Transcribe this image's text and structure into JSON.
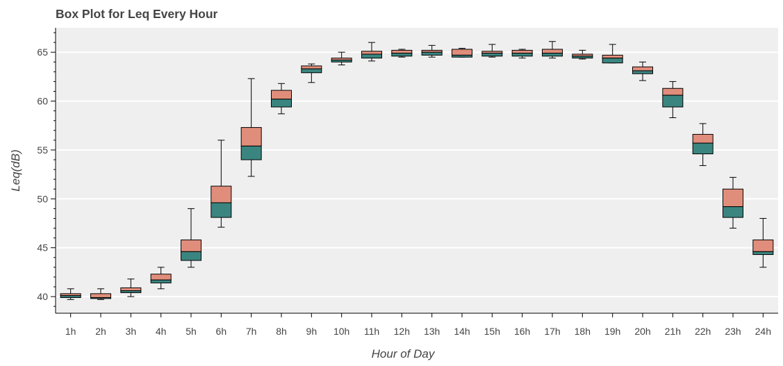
{
  "chart_data": {
    "type": "box",
    "title": "Box Plot for Leq Every Hour",
    "xlabel": "Hour of Day",
    "ylabel": "Leq(dB)",
    "ylim": [
      38.3,
      67.5
    ],
    "yticks": [
      40,
      45,
      50,
      55,
      60,
      65
    ],
    "grid": "horizontal",
    "colors": {
      "upper_box": "#e08e7b",
      "lower_box": "#3b8580",
      "plot_bg": "#efefef",
      "grid": "#ffffff",
      "outline": "#000000"
    },
    "categories": [
      "1h",
      "2h",
      "3h",
      "4h",
      "5h",
      "6h",
      "7h",
      "8h",
      "9h",
      "10h",
      "11h",
      "12h",
      "13h",
      "14h",
      "15h",
      "16h",
      "17h",
      "18h",
      "19h",
      "20h",
      "21h",
      "22h",
      "23h",
      "24h"
    ],
    "boxes": [
      {
        "lower_whisker": 39.7,
        "q1": 39.9,
        "median": 40.1,
        "q3": 40.3,
        "upper_whisker": 40.8
      },
      {
        "lower_whisker": 39.7,
        "q1": 39.8,
        "median": 39.9,
        "q3": 40.3,
        "upper_whisker": 40.8
      },
      {
        "lower_whisker": 40.0,
        "q1": 40.4,
        "median": 40.6,
        "q3": 40.9,
        "upper_whisker": 41.8
      },
      {
        "lower_whisker": 40.8,
        "q1": 41.4,
        "median": 41.7,
        "q3": 42.3,
        "upper_whisker": 43.0
      },
      {
        "lower_whisker": 43.0,
        "q1": 43.7,
        "median": 44.6,
        "q3": 45.8,
        "upper_whisker": 49.0
      },
      {
        "lower_whisker": 47.1,
        "q1": 48.1,
        "median": 49.6,
        "q3": 51.3,
        "upper_whisker": 56.0
      },
      {
        "lower_whisker": 52.3,
        "q1": 54.0,
        "median": 55.4,
        "q3": 57.3,
        "upper_whisker": 62.3
      },
      {
        "lower_whisker": 58.7,
        "q1": 59.4,
        "median": 60.2,
        "q3": 61.1,
        "upper_whisker": 61.8
      },
      {
        "lower_whisker": 61.9,
        "q1": 62.9,
        "median": 63.3,
        "q3": 63.6,
        "upper_whisker": 63.8
      },
      {
        "lower_whisker": 63.7,
        "q1": 64.0,
        "median": 64.2,
        "q3": 64.4,
        "upper_whisker": 65.0
      },
      {
        "lower_whisker": 64.1,
        "q1": 64.4,
        "median": 64.8,
        "q3": 65.1,
        "upper_whisker": 66.0
      },
      {
        "lower_whisker": 64.5,
        "q1": 64.6,
        "median": 64.9,
        "q3": 65.2,
        "upper_whisker": 65.3
      },
      {
        "lower_whisker": 64.5,
        "q1": 64.7,
        "median": 65.0,
        "q3": 65.2,
        "upper_whisker": 65.7
      },
      {
        "lower_whisker": 64.5,
        "q1": 64.5,
        "median": 64.7,
        "q3": 65.3,
        "upper_whisker": 65.4
      },
      {
        "lower_whisker": 64.5,
        "q1": 64.6,
        "median": 64.9,
        "q3": 65.1,
        "upper_whisker": 65.8
      },
      {
        "lower_whisker": 64.4,
        "q1": 64.6,
        "median": 64.9,
        "q3": 65.2,
        "upper_whisker": 65.3
      },
      {
        "lower_whisker": 64.4,
        "q1": 64.6,
        "median": 64.9,
        "q3": 65.3,
        "upper_whisker": 66.1
      },
      {
        "lower_whisker": 64.3,
        "q1": 64.4,
        "median": 64.6,
        "q3": 64.8,
        "upper_whisker": 65.2
      },
      {
        "lower_whisker": 63.9,
        "q1": 63.9,
        "median": 64.4,
        "q3": 64.7,
        "upper_whisker": 65.8
      },
      {
        "lower_whisker": 62.1,
        "q1": 62.8,
        "median": 63.1,
        "q3": 63.5,
        "upper_whisker": 64.0
      },
      {
        "lower_whisker": 58.3,
        "q1": 59.4,
        "median": 60.6,
        "q3": 61.3,
        "upper_whisker": 62.0
      },
      {
        "lower_whisker": 53.4,
        "q1": 54.6,
        "median": 55.7,
        "q3": 56.6,
        "upper_whisker": 57.7
      },
      {
        "lower_whisker": 47.0,
        "q1": 48.1,
        "median": 49.2,
        "q3": 51.0,
        "upper_whisker": 52.2
      },
      {
        "lower_whisker": 43.0,
        "q1": 44.3,
        "median": 44.6,
        "q3": 45.8,
        "upper_whisker": 48.0
      }
    ]
  }
}
